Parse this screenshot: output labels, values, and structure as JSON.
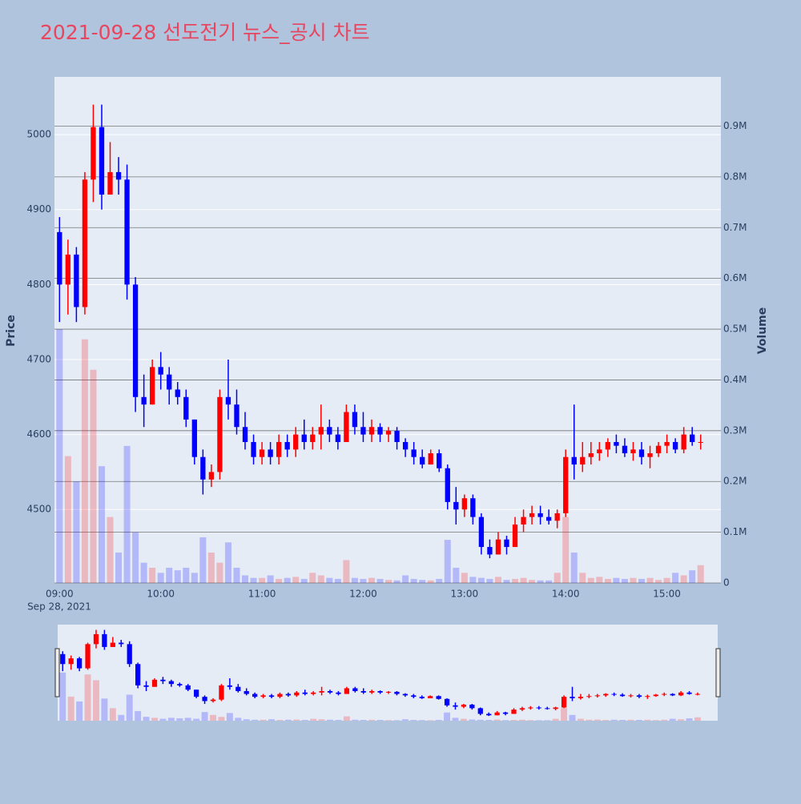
{
  "chart_data": {
    "type": "candlestick",
    "title": "2021-09-28 선도전기 뉴스_공시 차트",
    "y_label": "Price",
    "y2_label": "Volume",
    "x_date_label": "Sep 28, 2021",
    "increasing_color": "#ff0000",
    "decreasing_color": "#0000ff",
    "x": [
      "09:00",
      "09:05",
      "09:10",
      "09:15",
      "09:20",
      "09:25",
      "09:30",
      "09:35",
      "09:40",
      "09:45",
      "09:50",
      "09:55",
      "10:00",
      "10:05",
      "10:10",
      "10:15",
      "10:20",
      "10:25",
      "10:30",
      "10:35",
      "10:40",
      "10:45",
      "10:50",
      "10:55",
      "11:00",
      "11:05",
      "11:10",
      "11:15",
      "11:20",
      "11:25",
      "11:30",
      "11:35",
      "11:40",
      "11:45",
      "11:50",
      "11:55",
      "12:00",
      "12:05",
      "12:10",
      "12:15",
      "12:20",
      "12:25",
      "12:30",
      "12:35",
      "12:40",
      "12:45",
      "12:50",
      "12:55",
      "13:00",
      "13:05",
      "13:10",
      "13:15",
      "13:20",
      "13:25",
      "13:30",
      "13:35",
      "13:40",
      "13:45",
      "13:50",
      "13:55",
      "14:00",
      "14:05",
      "14:10",
      "14:15",
      "14:20",
      "14:25",
      "14:30",
      "14:35",
      "14:40",
      "14:45",
      "14:50",
      "14:55",
      "15:00",
      "15:05",
      "15:10",
      "15:15",
      "15:20"
    ],
    "open": [
      4870,
      4800,
      4840,
      4770,
      4940,
      5010,
      4920,
      4950,
      4940,
      4800,
      4650,
      4640,
      4690,
      4680,
      4660,
      4650,
      4620,
      4570,
      4540,
      4550,
      4650,
      4640,
      4610,
      4590,
      4570,
      4580,
      4570,
      4590,
      4580,
      4600,
      4590,
      4600,
      4610,
      4600,
      4590,
      4630,
      4610,
      4600,
      4610,
      4600,
      4605,
      4590,
      4580,
      4570,
      4560,
      4575,
      4555,
      4510,
      4500,
      4515,
      4490,
      4450,
      4440,
      4460,
      4450,
      4480,
      4490,
      4495,
      4490,
      4485,
      4495,
      4570,
      4560,
      4570,
      4575,
      4580,
      4590,
      4585,
      4575,
      4580,
      4570,
      4575,
      4585,
      4590,
      4580,
      4600,
      4590
    ],
    "high": [
      4890,
      4860,
      4850,
      4950,
      5040,
      5040,
      4990,
      4970,
      4960,
      4810,
      4680,
      4700,
      4710,
      4690,
      4670,
      4660,
      4620,
      4580,
      4560,
      4660,
      4700,
      4660,
      4630,
      4600,
      4590,
      4590,
      4600,
      4600,
      4610,
      4620,
      4610,
      4640,
      4620,
      4610,
      4640,
      4640,
      4630,
      4620,
      4615,
      4610,
      4610,
      4595,
      4590,
      4580,
      4580,
      4580,
      4560,
      4530,
      4520,
      4520,
      4495,
      4460,
      4470,
      4465,
      4490,
      4500,
      4505,
      4505,
      4500,
      4500,
      4580,
      4640,
      4590,
      4590,
      4590,
      4595,
      4600,
      4595,
      4590,
      4590,
      4585,
      4590,
      4600,
      4595,
      4610,
      4610,
      4600
    ],
    "low": [
      4750,
      4760,
      4750,
      4760,
      4910,
      4900,
      4920,
      4920,
      4780,
      4630,
      4610,
      4640,
      4660,
      4640,
      4640,
      4610,
      4560,
      4520,
      4530,
      4540,
      4620,
      4600,
      4580,
      4560,
      4560,
      4560,
      4560,
      4570,
      4570,
      4580,
      4580,
      4580,
      4590,
      4580,
      4590,
      4600,
      4590,
      4590,
      4590,
      4590,
      4580,
      4570,
      4560,
      4555,
      4560,
      4550,
      4500,
      4480,
      4490,
      4480,
      4440,
      4435,
      4440,
      4440,
      4450,
      4470,
      4480,
      4480,
      4480,
      4475,
      4490,
      4540,
      4550,
      4560,
      4565,
      4570,
      4575,
      4570,
      4565,
      4560,
      4555,
      4570,
      4575,
      4575,
      4575,
      4585,
      4580
    ],
    "close": [
      4800,
      4840,
      4770,
      4940,
      5010,
      4920,
      4950,
      4940,
      4800,
      4650,
      4640,
      4690,
      4680,
      4660,
      4650,
      4620,
      4570,
      4540,
      4550,
      4650,
      4640,
      4610,
      4590,
      4570,
      4580,
      4570,
      4590,
      4580,
      4600,
      4590,
      4600,
      4610,
      4600,
      4590,
      4630,
      4610,
      4600,
      4610,
      4600,
      4605,
      4590,
      4580,
      4570,
      4560,
      4575,
      4555,
      4510,
      4500,
      4515,
      4490,
      4450,
      4440,
      4460,
      4450,
      4480,
      4490,
      4495,
      4490,
      4485,
      4495,
      4570,
      4560,
      4570,
      4575,
      4580,
      4590,
      4585,
      4575,
      4580,
      4570,
      4575,
      4585,
      4590,
      4580,
      4600,
      4590,
      4590
    ],
    "volume": [
      500000,
      250000,
      200000,
      480000,
      420000,
      230000,
      130000,
      60000,
      270000,
      100000,
      40000,
      30000,
      20000,
      30000,
      25000,
      30000,
      20000,
      90000,
      60000,
      40000,
      80000,
      30000,
      15000,
      10000,
      10000,
      15000,
      8000,
      10000,
      12000,
      8000,
      20000,
      15000,
      10000,
      8000,
      45000,
      10000,
      8000,
      10000,
      8000,
      6000,
      5000,
      15000,
      8000,
      6000,
      5000,
      8000,
      85000,
      30000,
      20000,
      12000,
      10000,
      8000,
      12000,
      6000,
      8000,
      10000,
      6000,
      5000,
      5000,
      20000,
      130000,
      60000,
      20000,
      10000,
      12000,
      8000,
      10000,
      8000,
      10000,
      8000,
      10000,
      6000,
      10000,
      20000,
      15000,
      25000,
      35000
    ],
    "xlim": [
      "08:57",
      "15:32"
    ],
    "xticks": [
      "09:00",
      "10:00",
      "11:00",
      "12:00",
      "13:00",
      "14:00",
      "15:00"
    ],
    "ylim": [
      4402,
      5077
    ],
    "yticks": [
      4500,
      4600,
      4700,
      4800,
      4900,
      5000
    ],
    "y2lim": [
      0,
      997000
    ],
    "y2ticks": [
      0,
      {
        "value": 100000,
        "label": "0.1M"
      },
      {
        "value": 200000,
        "label": "0.2M"
      },
      {
        "value": 300000,
        "label": "0.3M"
      },
      {
        "value": 400000,
        "label": "0.4M"
      },
      {
        "value": 500000,
        "label": "0.5M"
      },
      {
        "value": 600000,
        "label": "0.6M"
      },
      {
        "value": 700000,
        "label": "0.7M"
      },
      {
        "value": 800000,
        "label": "0.8M"
      },
      {
        "value": 900000,
        "label": "0.9M"
      }
    ]
  }
}
